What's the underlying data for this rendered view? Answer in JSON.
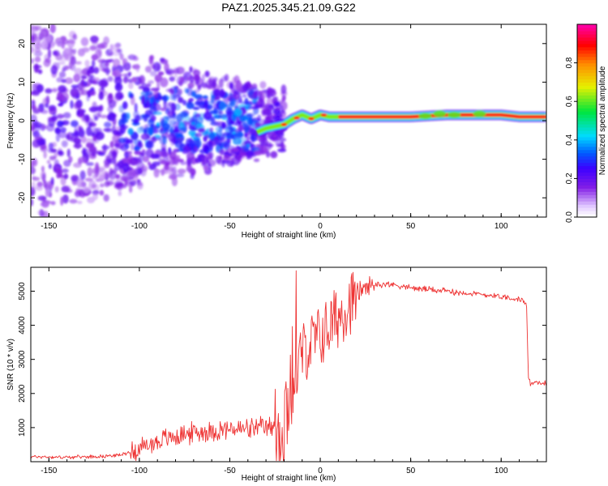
{
  "title": "PAZ1.2025.345.21.09.G22",
  "chart_data": [
    {
      "type": "heatmap",
      "title": "PAZ1.2025.345.21.09.G22",
      "xlabel": "Height of straight line (km)",
      "ylabel": "Frequency (Hz)",
      "xlim": [
        -160,
        125
      ],
      "ylim": [
        -25,
        25
      ],
      "xticks": [
        -150,
        -100,
        -50,
        0,
        50,
        100
      ],
      "yticks": [
        -20,
        -10,
        0,
        10,
        20
      ],
      "colorbar": {
        "label": "Normalized spectral amplitude",
        "range": [
          0,
          1
        ],
        "ticks": [
          "0.0",
          "0.2",
          "0.4",
          "0.6",
          "0.8"
        ]
      },
      "ridge": [
        {
          "x": -35,
          "y": -3
        },
        {
          "x": -30,
          "y": -2
        },
        {
          "x": -25,
          "y": -1.5
        },
        {
          "x": -20,
          "y": -1
        },
        {
          "x": -15,
          "y": 0.5
        },
        {
          "x": -10,
          "y": 1.5
        },
        {
          "x": -5,
          "y": 0.5
        },
        {
          "x": 0,
          "y": 1.5
        },
        {
          "x": 5,
          "y": 1
        },
        {
          "x": 10,
          "y": 1
        },
        {
          "x": 20,
          "y": 1
        },
        {
          "x": 50,
          "y": 1
        },
        {
          "x": 70,
          "y": 1.5
        },
        {
          "x": 90,
          "y": 1.5
        },
        {
          "x": 100,
          "y": 1.5
        },
        {
          "x": 110,
          "y": 1
        },
        {
          "x": 125,
          "y": 1
        }
      ]
    },
    {
      "type": "line",
      "xlabel": "Height of straight line (km)",
      "ylabel": "SNR (10 * v/v)",
      "xlim": [
        -160,
        125
      ],
      "ylim": [
        0,
        5700
      ],
      "xticks": [
        -150,
        -100,
        -50,
        0,
        50,
        100
      ],
      "yticks": [
        1000,
        2000,
        3000,
        4000,
        5000
      ],
      "color": "#ee3333",
      "series": [
        {
          "name": "SNR",
          "x": [
            -160,
            -140,
            -120,
            -110,
            -100,
            -90,
            -80,
            -70,
            -60,
            -50,
            -40,
            -30,
            -25,
            -20,
            -15,
            -10,
            -5,
            0,
            5,
            10,
            15,
            20,
            25,
            30,
            40,
            50,
            60,
            70,
            80,
            90,
            100,
            110,
            114,
            115,
            116,
            120,
            125
          ],
          "y": [
            150,
            130,
            160,
            200,
            380,
            600,
            750,
            850,
            900,
            950,
            950,
            1000,
            1000,
            1600,
            2800,
            3300,
            3600,
            3800,
            4100,
            4400,
            4750,
            4950,
            5100,
            5200,
            5200,
            5100,
            5050,
            5000,
            4950,
            4900,
            4850,
            4750,
            4700,
            2500,
            2300,
            2300,
            2300
          ]
        }
      ]
    }
  ]
}
